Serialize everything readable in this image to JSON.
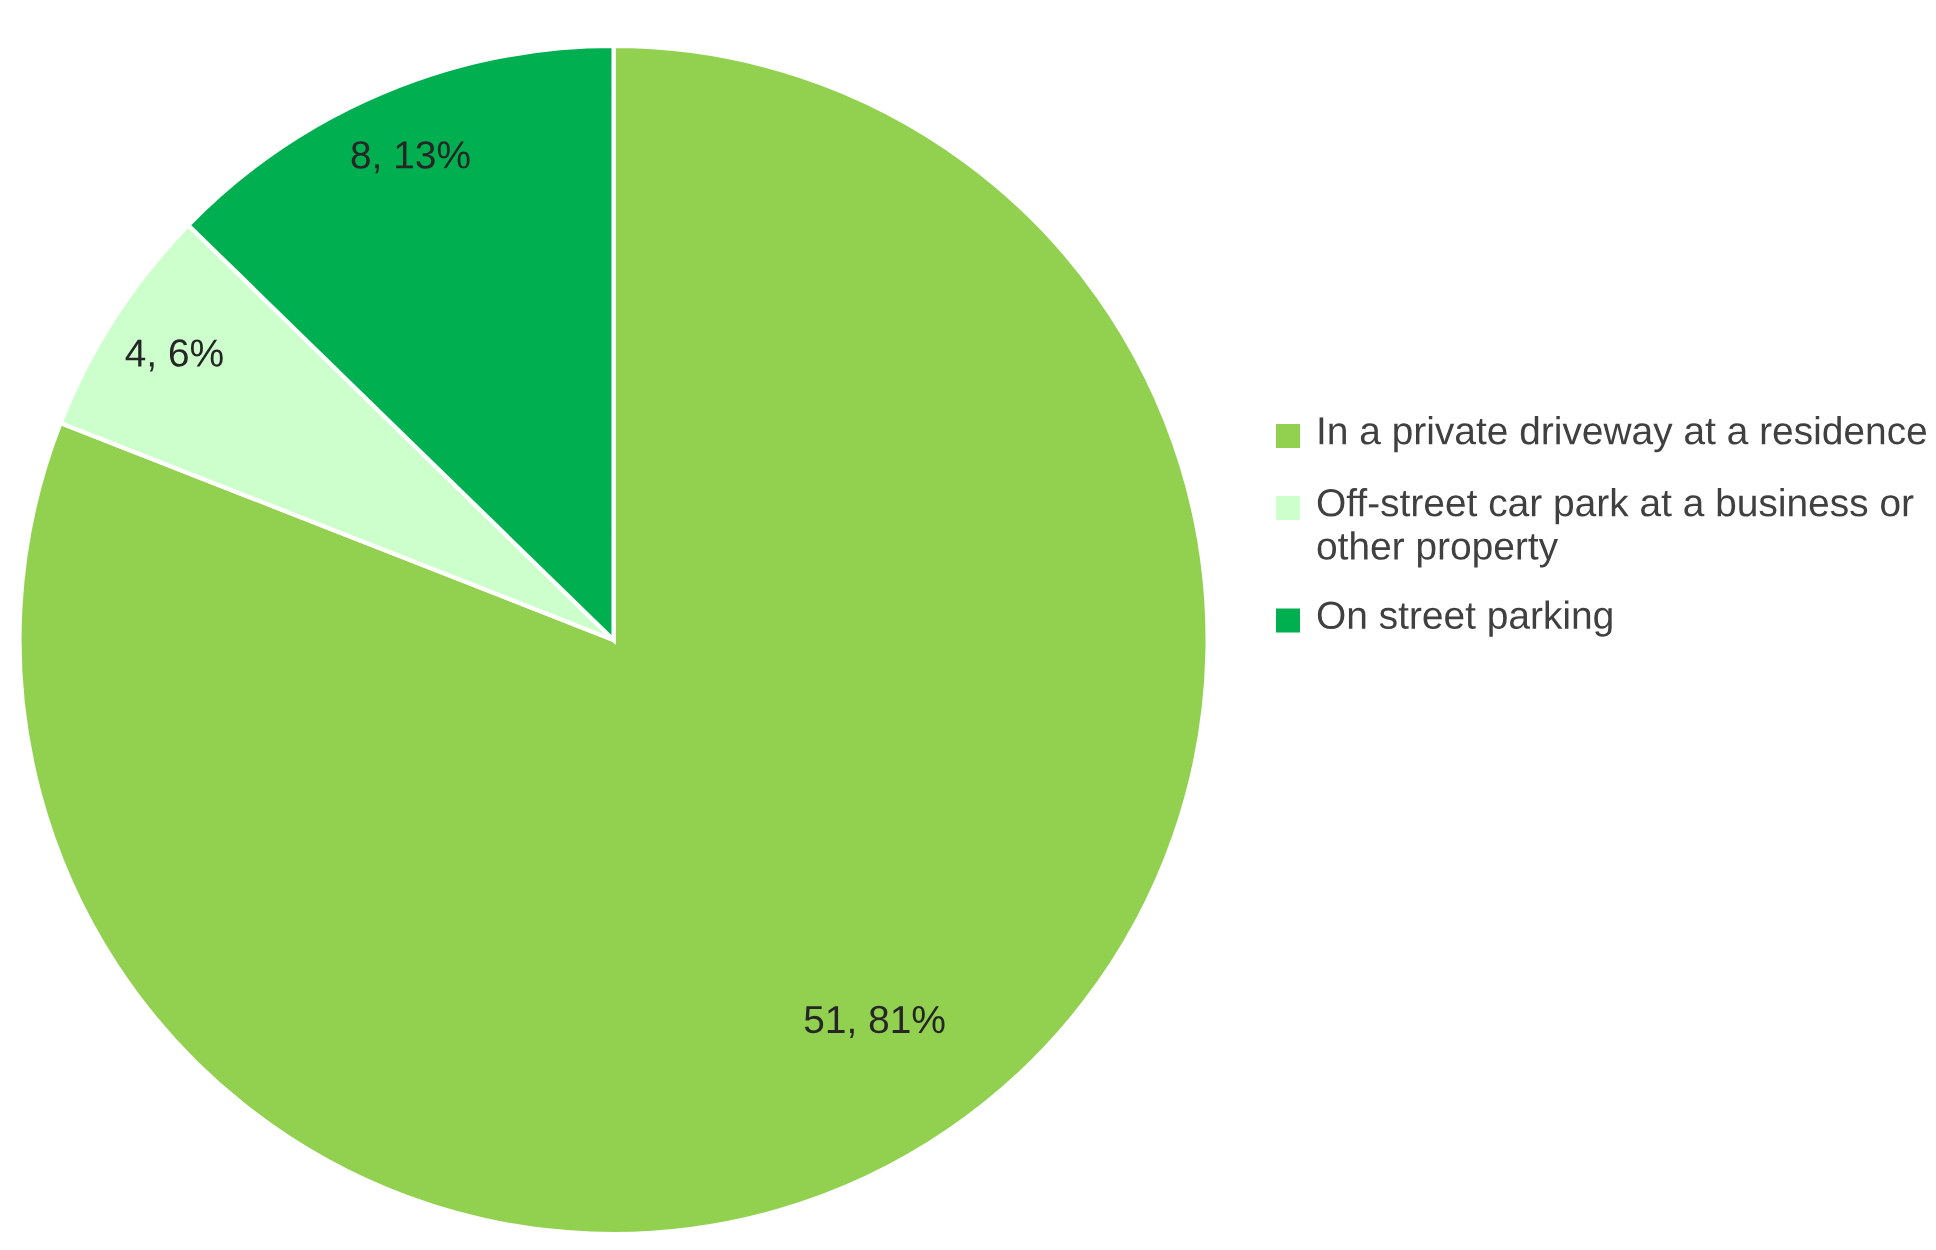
{
  "chart_data": {
    "type": "pie",
    "categories": [
      "In a private driveway at a residence",
      "Off-street car park at a business or other property",
      "On street parking"
    ],
    "values": [
      51,
      4,
      8
    ],
    "colors": [
      "#92d050",
      "#ccffcc",
      "#00b050"
    ],
    "value_labels": [
      "51, 81%",
      "4, 6%",
      "8, 13%"
    ],
    "legend": "right"
  }
}
